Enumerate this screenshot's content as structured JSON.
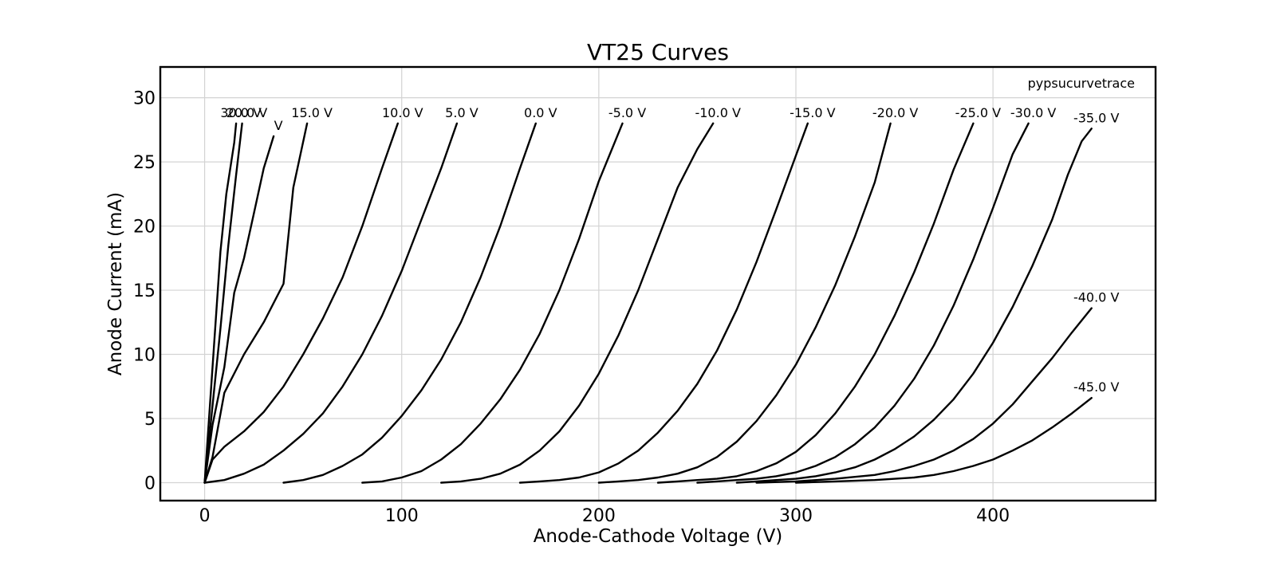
{
  "chart_data": {
    "type": "line",
    "title": "VT25 Curves",
    "xlabel": "Anode-Cathode Voltage (V)",
    "ylabel": "Anode Current (mA)",
    "xlim": [
      -22.5,
      482.5
    ],
    "ylim": [
      -1.4,
      32.4
    ],
    "xticks": [
      0,
      100,
      200,
      300,
      400
    ],
    "yticks": [
      0,
      5,
      10,
      15,
      20,
      25,
      30
    ],
    "grid": true,
    "annotation": "pypsucurvetrace",
    "series": [
      {
        "name": "30.0 V",
        "points": [
          [
            0,
            0
          ],
          [
            4,
            9
          ],
          [
            8,
            18
          ],
          [
            11,
            22.5
          ],
          [
            15,
            26.5
          ],
          [
            16,
            28
          ]
        ]
      },
      {
        "name": "20.0 V",
        "points": [
          [
            0,
            0
          ],
          [
            4,
            6
          ],
          [
            8,
            12
          ],
          [
            12,
            18.5
          ],
          [
            16,
            24
          ],
          [
            19,
            28
          ]
        ]
      },
      {
        "name": "V",
        "points": [
          [
            0,
            0
          ],
          [
            4,
            4.5
          ],
          [
            10,
            9
          ],
          [
            15,
            14.8
          ],
          [
            20,
            17.5
          ],
          [
            25,
            21
          ],
          [
            30,
            24.5
          ],
          [
            35,
            27
          ]
        ]
      },
      {
        "name": "15.0 V",
        "points": [
          [
            0,
            0
          ],
          [
            4,
            2
          ],
          [
            10,
            7
          ],
          [
            20,
            10
          ],
          [
            30,
            12.5
          ],
          [
            40,
            15.5
          ],
          [
            45,
            23
          ],
          [
            52,
            28
          ]
        ]
      },
      {
        "name": "10.0 V",
        "points": [
          [
            0,
            0
          ],
          [
            4,
            1.8
          ],
          [
            10,
            2.8
          ],
          [
            20,
            4
          ],
          [
            30,
            5.5
          ],
          [
            40,
            7.5
          ],
          [
            50,
            10
          ],
          [
            60,
            12.8
          ],
          [
            70,
            16
          ],
          [
            80,
            20
          ],
          [
            90,
            24.5
          ],
          [
            98,
            28
          ]
        ]
      },
      {
        "name": "5.0 V",
        "points": [
          [
            0,
            0
          ],
          [
            10,
            0.2
          ],
          [
            20,
            0.7
          ],
          [
            30,
            1.4
          ],
          [
            40,
            2.5
          ],
          [
            50,
            3.8
          ],
          [
            60,
            5.4
          ],
          [
            70,
            7.5
          ],
          [
            80,
            10
          ],
          [
            90,
            13
          ],
          [
            100,
            16.5
          ],
          [
            110,
            20.5
          ],
          [
            120,
            24.5
          ],
          [
            128,
            28
          ]
        ]
      },
      {
        "name": "0.0 V",
        "points": [
          [
            40,
            0
          ],
          [
            50,
            0.2
          ],
          [
            60,
            0.6
          ],
          [
            70,
            1.3
          ],
          [
            80,
            2.2
          ],
          [
            90,
            3.5
          ],
          [
            100,
            5.2
          ],
          [
            110,
            7.2
          ],
          [
            120,
            9.6
          ],
          [
            130,
            12.5
          ],
          [
            140,
            16
          ],
          [
            150,
            20
          ],
          [
            160,
            24.5
          ],
          [
            168,
            28
          ]
        ]
      },
      {
        "name": "-5.0 V",
        "points": [
          [
            80,
            0
          ],
          [
            90,
            0.1
          ],
          [
            100,
            0.4
          ],
          [
            110,
            0.9
          ],
          [
            120,
            1.8
          ],
          [
            130,
            3
          ],
          [
            140,
            4.6
          ],
          [
            150,
            6.5
          ],
          [
            160,
            8.8
          ],
          [
            170,
            11.6
          ],
          [
            180,
            15
          ],
          [
            190,
            19
          ],
          [
            200,
            23.5
          ],
          [
            212,
            28
          ]
        ]
      },
      {
        "name": "-10.0 V",
        "points": [
          [
            120,
            0
          ],
          [
            130,
            0.1
          ],
          [
            140,
            0.3
          ],
          [
            150,
            0.7
          ],
          [
            160,
            1.4
          ],
          [
            170,
            2.5
          ],
          [
            180,
            4
          ],
          [
            190,
            6
          ],
          [
            200,
            8.5
          ],
          [
            210,
            11.5
          ],
          [
            220,
            15
          ],
          [
            230,
            19
          ],
          [
            240,
            23
          ],
          [
            250,
            26
          ],
          [
            258,
            28
          ]
        ]
      },
      {
        "name": "-15.0 V",
        "points": [
          [
            160,
            0
          ],
          [
            170,
            0.1
          ],
          [
            180,
            0.2
          ],
          [
            190,
            0.4
          ],
          [
            200,
            0.8
          ],
          [
            210,
            1.5
          ],
          [
            220,
            2.5
          ],
          [
            230,
            3.9
          ],
          [
            240,
            5.6
          ],
          [
            250,
            7.7
          ],
          [
            260,
            10.3
          ],
          [
            270,
            13.5
          ],
          [
            280,
            17.2
          ],
          [
            290,
            21.3
          ],
          [
            300,
            25.5
          ],
          [
            306,
            28
          ]
        ]
      },
      {
        "name": "-20.0 V",
        "points": [
          [
            200,
            0
          ],
          [
            210,
            0.1
          ],
          [
            220,
            0.2
          ],
          [
            230,
            0.4
          ],
          [
            240,
            0.7
          ],
          [
            250,
            1.2
          ],
          [
            260,
            2
          ],
          [
            270,
            3.2
          ],
          [
            280,
            4.8
          ],
          [
            290,
            6.8
          ],
          [
            300,
            9.2
          ],
          [
            310,
            12.1
          ],
          [
            320,
            15.4
          ],
          [
            330,
            19.2
          ],
          [
            340,
            23.4
          ],
          [
            348,
            28
          ]
        ]
      },
      {
        "name": "-25.0 V",
        "points": [
          [
            230,
            0
          ],
          [
            240,
            0.1
          ],
          [
            250,
            0.2
          ],
          [
            260,
            0.3
          ],
          [
            270,
            0.5
          ],
          [
            280,
            0.9
          ],
          [
            290,
            1.5
          ],
          [
            300,
            2.4
          ],
          [
            310,
            3.7
          ],
          [
            320,
            5.4
          ],
          [
            330,
            7.5
          ],
          [
            340,
            10
          ],
          [
            350,
            13
          ],
          [
            360,
            16.4
          ],
          [
            370,
            20.2
          ],
          [
            380,
            24.4
          ],
          [
            390,
            28
          ]
        ]
      },
      {
        "name": "-30.0 V",
        "points": [
          [
            250,
            0
          ],
          [
            260,
            0.1
          ],
          [
            270,
            0.2
          ],
          [
            280,
            0.3
          ],
          [
            290,
            0.5
          ],
          [
            300,
            0.8
          ],
          [
            310,
            1.3
          ],
          [
            320,
            2
          ],
          [
            330,
            3
          ],
          [
            340,
            4.3
          ],
          [
            350,
            6
          ],
          [
            360,
            8.1
          ],
          [
            370,
            10.7
          ],
          [
            380,
            13.8
          ],
          [
            390,
            17.4
          ],
          [
            400,
            21.4
          ],
          [
            410,
            25.6
          ],
          [
            418,
            28
          ]
        ]
      },
      {
        "name": "-35.0 V",
        "points": [
          [
            270,
            0
          ],
          [
            280,
            0.1
          ],
          [
            290,
            0.2
          ],
          [
            300,
            0.3
          ],
          [
            310,
            0.5
          ],
          [
            320,
            0.8
          ],
          [
            330,
            1.2
          ],
          [
            340,
            1.8
          ],
          [
            350,
            2.6
          ],
          [
            360,
            3.6
          ],
          [
            370,
            4.9
          ],
          [
            380,
            6.5
          ],
          [
            390,
            8.5
          ],
          [
            400,
            10.9
          ],
          [
            410,
            13.7
          ],
          [
            420,
            16.9
          ],
          [
            430,
            20.5
          ],
          [
            438,
            24
          ],
          [
            445,
            26.6
          ],
          [
            450,
            27.6
          ]
        ]
      },
      {
        "name": "-40.0 V",
        "points": [
          [
            280,
            0
          ],
          [
            300,
            0.1
          ],
          [
            320,
            0.3
          ],
          [
            340,
            0.6
          ],
          [
            350,
            0.9
          ],
          [
            360,
            1.3
          ],
          [
            370,
            1.8
          ],
          [
            380,
            2.5
          ],
          [
            390,
            3.4
          ],
          [
            400,
            4.6
          ],
          [
            410,
            6.1
          ],
          [
            420,
            7.9
          ],
          [
            430,
            9.7
          ],
          [
            440,
            11.7
          ],
          [
            450,
            13.6
          ]
        ]
      },
      {
        "name": "-45.0 V",
        "points": [
          [
            300,
            0
          ],
          [
            320,
            0.1
          ],
          [
            340,
            0.2
          ],
          [
            360,
            0.4
          ],
          [
            370,
            0.6
          ],
          [
            380,
            0.9
          ],
          [
            390,
            1.3
          ],
          [
            400,
            1.8
          ],
          [
            410,
            2.5
          ],
          [
            420,
            3.3
          ],
          [
            430,
            4.3
          ],
          [
            440,
            5.4
          ],
          [
            450,
            6.6
          ]
        ]
      }
    ]
  }
}
